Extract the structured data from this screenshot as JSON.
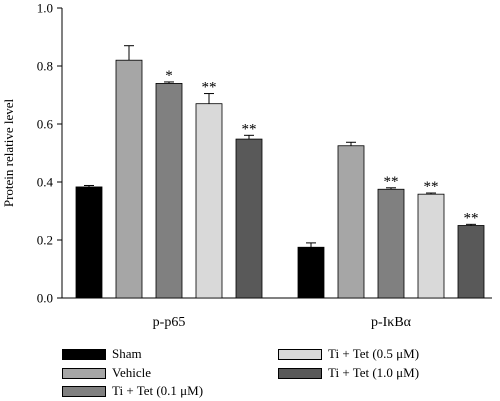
{
  "chart_data": {
    "type": "bar",
    "ylabel": "Protein relative level",
    "ylim": [
      0,
      1.0
    ],
    "yticks": [
      "0.0",
      "0.2",
      "0.4",
      "0.6",
      "0.8",
      "1.0"
    ],
    "categories": [
      "p-p65",
      "p-IκBα"
    ],
    "series": [
      {
        "name": "Sham",
        "color": "#000000",
        "values": [
          0.383,
          0.175
        ],
        "errors": [
          0.005,
          0.015
        ],
        "marks": [
          "",
          ""
        ]
      },
      {
        "name": "Vehicle",
        "color": "#a6a6a6",
        "values": [
          0.82,
          0.525
        ],
        "errors": [
          0.05,
          0.012
        ],
        "marks": [
          "",
          ""
        ]
      },
      {
        "name": "Ti + Tet (0.1  μM)",
        "color": "#808080",
        "values": [
          0.74,
          0.375
        ],
        "errors": [
          0.005,
          0.005
        ],
        "marks": [
          "*",
          "**"
        ]
      },
      {
        "name": "Ti + Tet (0.5  μM)",
        "color": "#d9d9d9",
        "values": [
          0.67,
          0.358
        ],
        "errors": [
          0.035,
          0.004
        ],
        "marks": [
          "**",
          "**"
        ]
      },
      {
        "name": "Ti + Tet (1.0  μM)",
        "color": "#595959",
        "values": [
          0.548,
          0.25
        ],
        "errors": [
          0.013,
          0.004
        ],
        "marks": [
          "**",
          "**"
        ]
      }
    ]
  }
}
